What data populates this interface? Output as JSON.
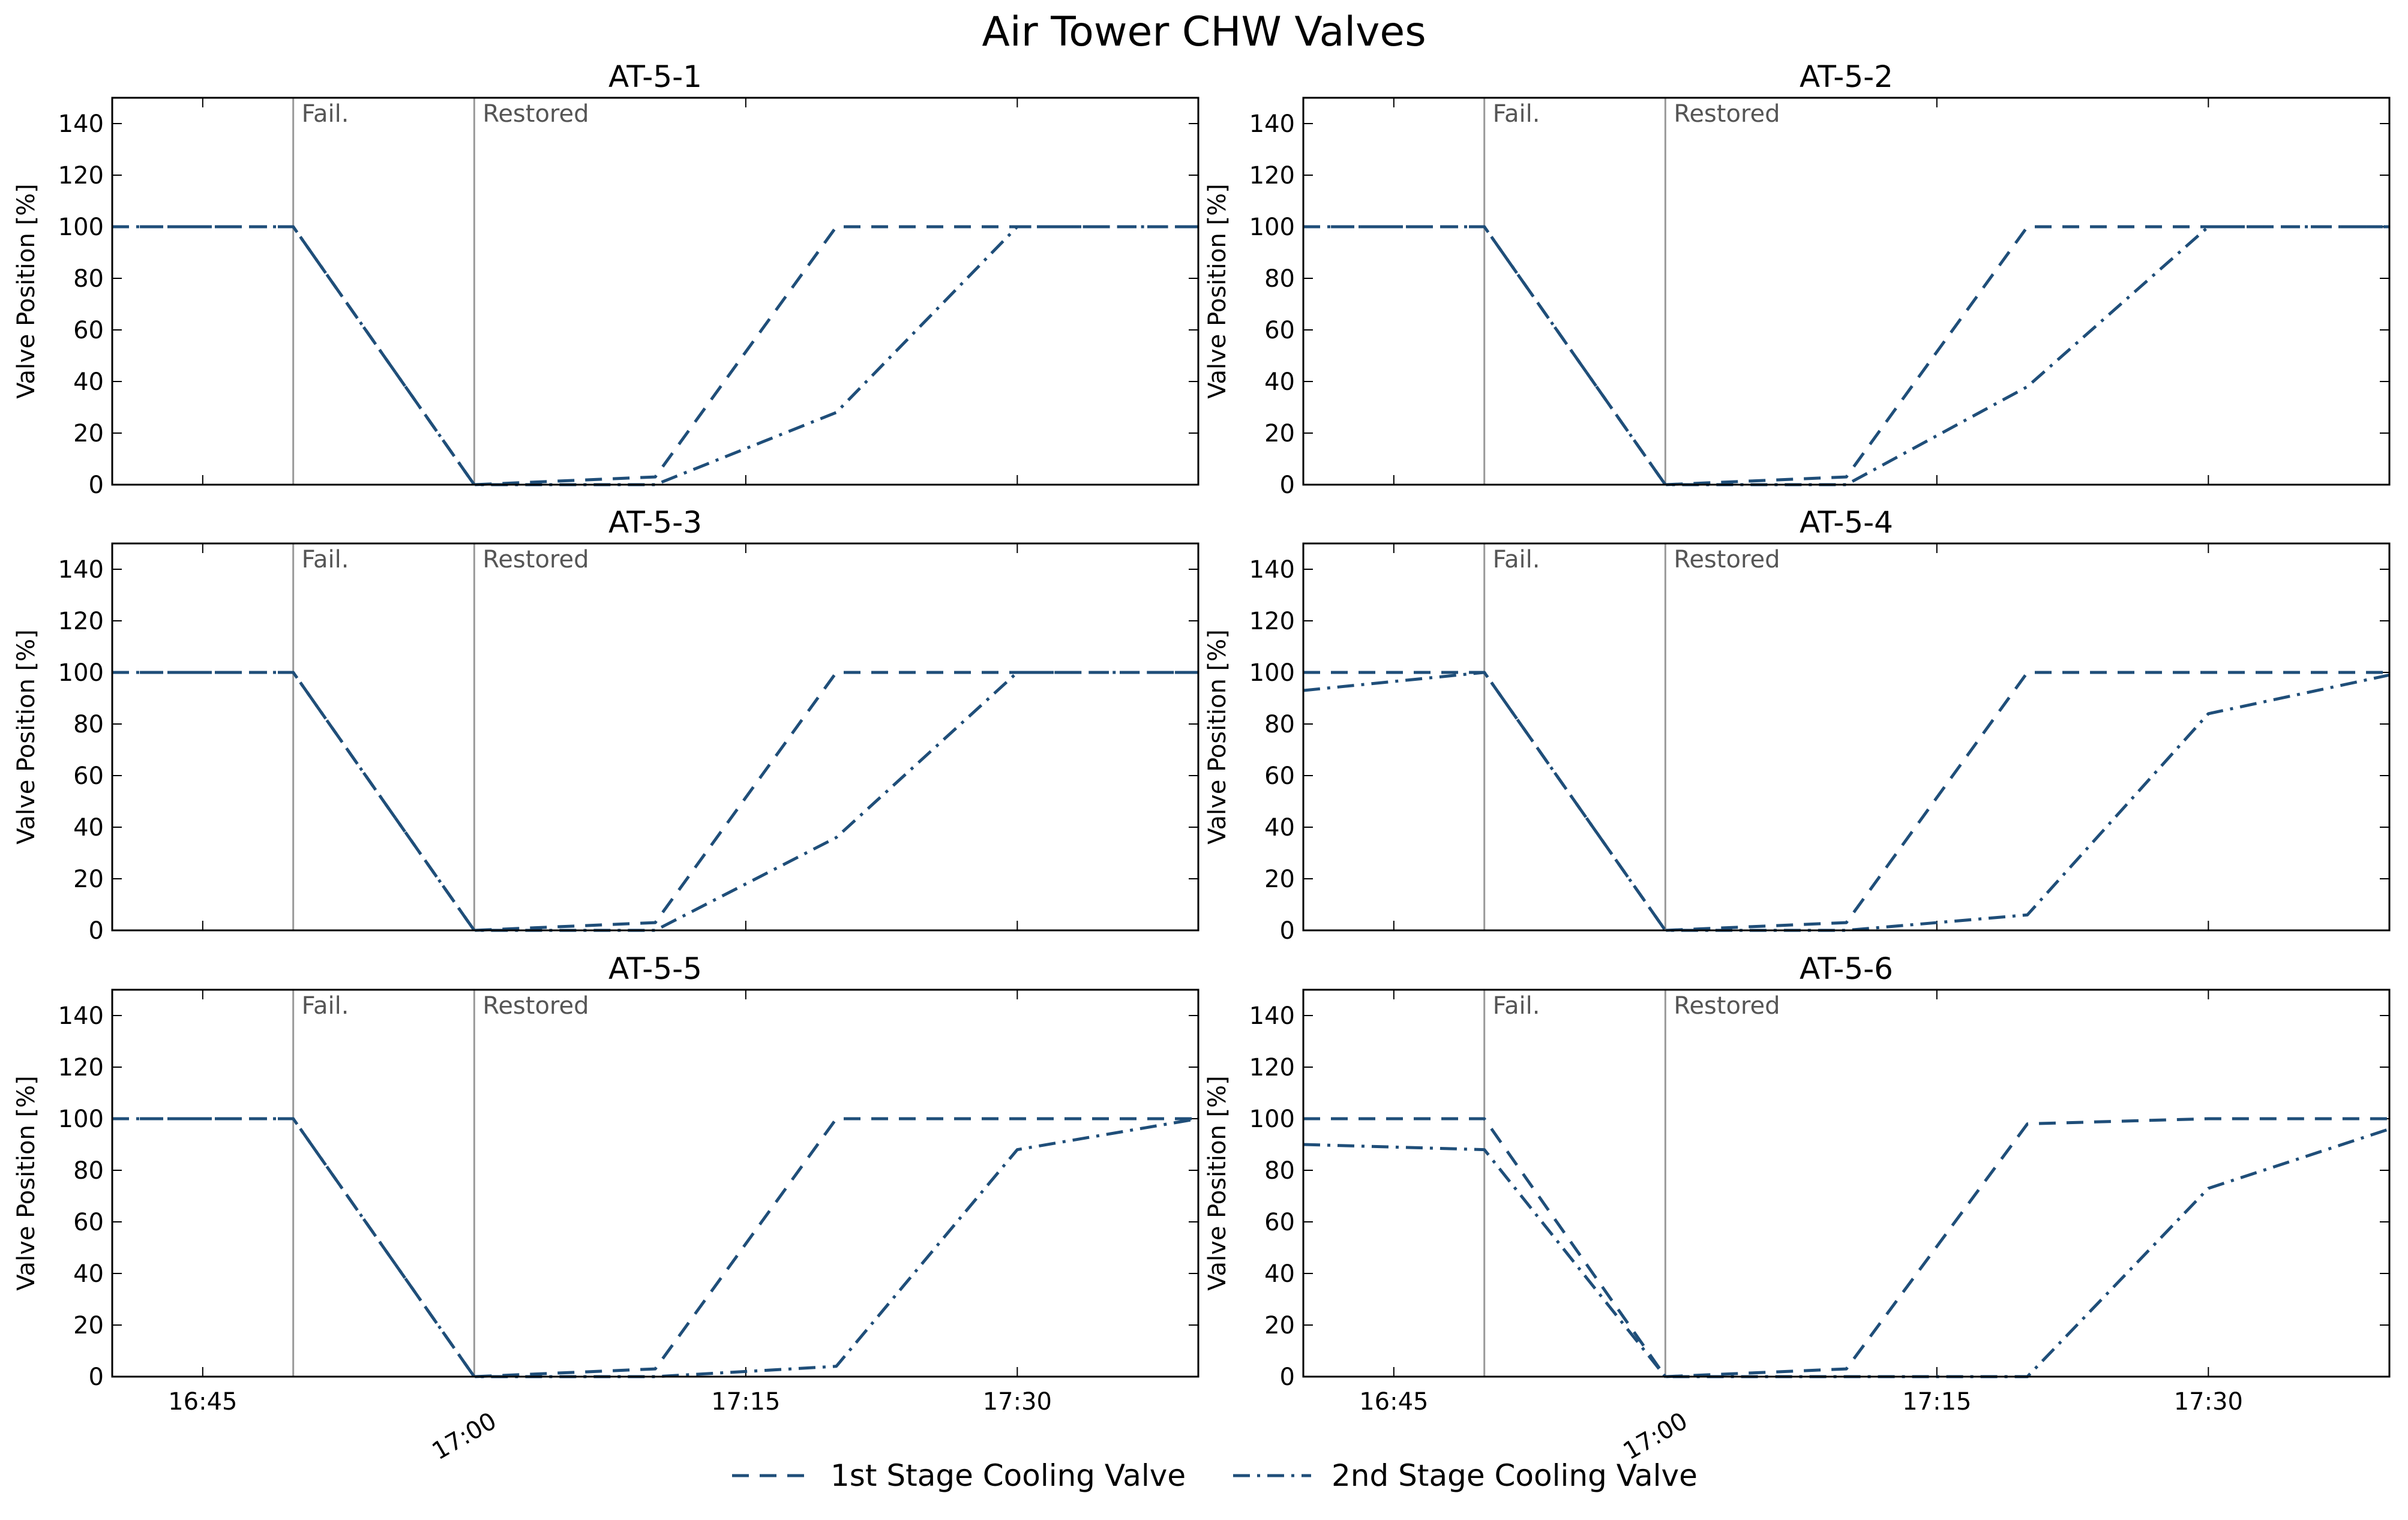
{
  "figure": {
    "title": "Air Tower CHW Valves"
  },
  "colors": {
    "series": "#1f4e79",
    "event_line": "#999999",
    "event_text": "#555555"
  },
  "events": [
    {
      "time": "16:50",
      "label": "Fail."
    },
    {
      "time": "17:00",
      "label": "Restored"
    }
  ],
  "chart_data": [
    {
      "type": "line",
      "title": "AT-5-1",
      "ylabel": "Valve Position [%]",
      "ylim": [
        0,
        150
      ],
      "yticks": [
        0,
        20,
        40,
        60,
        80,
        100,
        120,
        140
      ],
      "xlim": [
        "16:40",
        "17:40"
      ],
      "xticks": [
        "16:45",
        "17:00",
        "17:15",
        "17:30"
      ],
      "show_xticklabels": false,
      "series": [
        {
          "name": "1st Stage Cooling Valve",
          "style": "dashed",
          "x": [
            "16:40",
            "16:50",
            "17:00",
            "17:10",
            "17:20",
            "17:30",
            "17:40"
          ],
          "y": [
            100,
            100,
            0,
            3,
            100,
            100,
            100
          ]
        },
        {
          "name": "2nd Stage Cooling Valve",
          "style": "dashdot",
          "x": [
            "16:40",
            "16:50",
            "17:00",
            "17:10",
            "17:20",
            "17:30",
            "17:40"
          ],
          "y": [
            100,
            100,
            0,
            0,
            28,
            100,
            100
          ]
        }
      ]
    },
    {
      "type": "line",
      "title": "AT-5-2",
      "ylabel": "Valve Position [%]",
      "ylim": [
        0,
        150
      ],
      "yticks": [
        0,
        20,
        40,
        60,
        80,
        100,
        120,
        140
      ],
      "xlim": [
        "16:40",
        "17:40"
      ],
      "xticks": [
        "16:45",
        "17:00",
        "17:15",
        "17:30"
      ],
      "show_xticklabels": false,
      "series": [
        {
          "name": "1st Stage Cooling Valve",
          "style": "dashed",
          "x": [
            "16:40",
            "16:50",
            "17:00",
            "17:10",
            "17:20",
            "17:30",
            "17:40"
          ],
          "y": [
            100,
            100,
            0,
            3,
            100,
            100,
            100
          ]
        },
        {
          "name": "2nd Stage Cooling Valve",
          "style": "dashdot",
          "x": [
            "16:40",
            "16:50",
            "17:00",
            "17:10",
            "17:20",
            "17:30",
            "17:40"
          ],
          "y": [
            100,
            100,
            0,
            0,
            38,
            100,
            100
          ]
        }
      ]
    },
    {
      "type": "line",
      "title": "AT-5-3",
      "ylabel": "Valve Position [%]",
      "ylim": [
        0,
        150
      ],
      "yticks": [
        0,
        20,
        40,
        60,
        80,
        100,
        120,
        140
      ],
      "xlim": [
        "16:40",
        "17:40"
      ],
      "xticks": [
        "16:45",
        "17:00",
        "17:15",
        "17:30"
      ],
      "show_xticklabels": false,
      "series": [
        {
          "name": "1st Stage Cooling Valve",
          "style": "dashed",
          "x": [
            "16:40",
            "16:50",
            "17:00",
            "17:10",
            "17:20",
            "17:30",
            "17:40"
          ],
          "y": [
            100,
            100,
            0,
            3,
            100,
            100,
            100
          ]
        },
        {
          "name": "2nd Stage Cooling Valve",
          "style": "dashdot",
          "x": [
            "16:40",
            "16:50",
            "17:00",
            "17:10",
            "17:20",
            "17:30",
            "17:40"
          ],
          "y": [
            100,
            100,
            0,
            0,
            36,
            100,
            100
          ]
        }
      ]
    },
    {
      "type": "line",
      "title": "AT-5-4",
      "ylabel": "Valve Position [%]",
      "ylim": [
        0,
        150
      ],
      "yticks": [
        0,
        20,
        40,
        60,
        80,
        100,
        120,
        140
      ],
      "xlim": [
        "16:40",
        "17:40"
      ],
      "xticks": [
        "16:45",
        "17:00",
        "17:15",
        "17:30"
      ],
      "show_xticklabels": false,
      "series": [
        {
          "name": "1st Stage Cooling Valve",
          "style": "dashed",
          "x": [
            "16:40",
            "16:50",
            "17:00",
            "17:10",
            "17:20",
            "17:30",
            "17:40"
          ],
          "y": [
            100,
            100,
            0,
            3,
            100,
            100,
            100
          ]
        },
        {
          "name": "2nd Stage Cooling Valve",
          "style": "dashdot",
          "x": [
            "16:40",
            "16:50",
            "17:00",
            "17:10",
            "17:20",
            "17:30",
            "17:40"
          ],
          "y": [
            93,
            100,
            0,
            0,
            6,
            84,
            99
          ]
        }
      ]
    },
    {
      "type": "line",
      "title": "AT-5-5",
      "ylabel": "Valve Position [%]",
      "ylim": [
        0,
        150
      ],
      "yticks": [
        0,
        20,
        40,
        60,
        80,
        100,
        120,
        140
      ],
      "xlim": [
        "16:40",
        "17:40"
      ],
      "xticks": [
        "16:45",
        "17:00",
        "17:15",
        "17:30"
      ],
      "show_xticklabels": true,
      "series": [
        {
          "name": "1st Stage Cooling Valve",
          "style": "dashed",
          "x": [
            "16:40",
            "16:50",
            "17:00",
            "17:10",
            "17:20",
            "17:30",
            "17:40"
          ],
          "y": [
            100,
            100,
            0,
            3,
            100,
            100,
            100
          ]
        },
        {
          "name": "2nd Stage Cooling Valve",
          "style": "dashdot",
          "x": [
            "16:40",
            "16:50",
            "17:00",
            "17:10",
            "17:20",
            "17:30",
            "17:40"
          ],
          "y": [
            100,
            100,
            0,
            0,
            4,
            88,
            100
          ]
        }
      ]
    },
    {
      "type": "line",
      "title": "AT-5-6",
      "ylabel": "Valve Position [%]",
      "ylim": [
        0,
        150
      ],
      "yticks": [
        0,
        20,
        40,
        60,
        80,
        100,
        120,
        140
      ],
      "xlim": [
        "16:40",
        "17:40"
      ],
      "xticks": [
        "16:45",
        "17:00",
        "17:15",
        "17:30"
      ],
      "show_xticklabels": true,
      "series": [
        {
          "name": "1st Stage Cooling Valve",
          "style": "dashed",
          "x": [
            "16:40",
            "16:50",
            "17:00",
            "17:10",
            "17:20",
            "17:30",
            "17:40"
          ],
          "y": [
            100,
            100,
            0,
            3,
            98,
            100,
            100
          ]
        },
        {
          "name": "2nd Stage Cooling Valve",
          "style": "dashdot",
          "x": [
            "16:40",
            "16:50",
            "17:00",
            "17:10",
            "17:20",
            "17:30",
            "17:40"
          ],
          "y": [
            90,
            88,
            0,
            0,
            0,
            73,
            96
          ]
        }
      ]
    }
  ],
  "legend": {
    "placement": "bottom-center",
    "entries": [
      {
        "label": "1st Stage Cooling Valve",
        "style": "dashed"
      },
      {
        "label": "2nd Stage Cooling Valve",
        "style": "dashdot"
      }
    ]
  }
}
